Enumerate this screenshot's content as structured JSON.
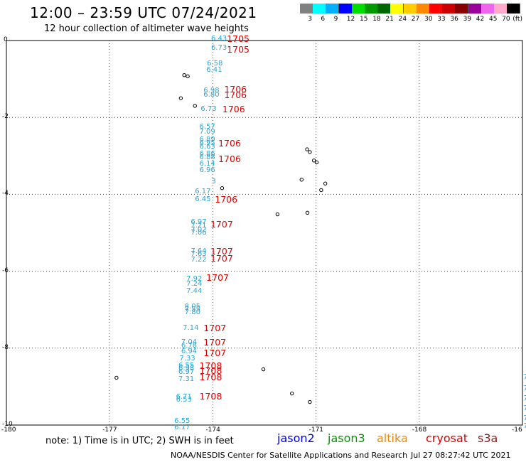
{
  "header": {
    "title": "12:00 – 23:59 UTC 07/24/2021",
    "subtitle": "12 hour collection of altimeter wave heights"
  },
  "colorbar": {
    "colors": [
      "#808080",
      "#00ffff",
      "#00b0ff",
      "#0000ff",
      "#00dd00",
      "#009900",
      "#006600",
      "#ffff00",
      "#ffcc00",
      "#ff8800",
      "#ff0000",
      "#cc0000",
      "#880000",
      "#990099",
      "#ee66ee",
      "#ffaacc",
      "#000000"
    ],
    "labels": [
      "3",
      "6",
      "9",
      "12",
      "15",
      "18",
      "21",
      "24",
      "27",
      "30",
      "33",
      "36",
      "39",
      "42",
      "45",
      "70",
      "(ft)"
    ]
  },
  "axes": {
    "x_ticks": [
      "-180",
      "-177",
      "-174",
      "-171",
      "-168",
      "-16"
    ],
    "y_ticks": [
      "0",
      "-2",
      "-4",
      "-6",
      "-8",
      "-10"
    ],
    "lon_range": [
      -180,
      -165
    ],
    "lat_range": [
      -10,
      0
    ]
  },
  "wave_heights": {
    "color": "#2aa6d6",
    "values": [
      {
        "text": "6.43",
        "lon": -174.03,
        "lat": 0.02
      },
      {
        "text": "6.73",
        "lon": -174.03,
        "lat": -0.23
      },
      {
        "text": "6.58",
        "lon": -174.15,
        "lat": -0.63
      },
      {
        "text": "6.41",
        "lon": -174.17,
        "lat": -0.8
      },
      {
        "text": "6.98",
        "lon": -174.25,
        "lat": -1.33
      },
      {
        "text": "6.80",
        "lon": -174.25,
        "lat": -1.45
      },
      {
        "text": "6.73",
        "lon": -174.33,
        "lat": -1.82
      },
      {
        "text": "6.57",
        "lon": -174.37,
        "lat": -2.28
      },
      {
        "text": "7.09",
        "lon": -174.37,
        "lat": -2.4
      },
      {
        "text": "6.89",
        "lon": -174.37,
        "lat": -2.6
      },
      {
        "text": "6.95",
        "lon": -174.37,
        "lat": -2.7
      },
      {
        "text": "6.63",
        "lon": -174.37,
        "lat": -2.8
      },
      {
        "text": "6.86",
        "lon": -174.37,
        "lat": -2.98
      },
      {
        "text": "6.88",
        "lon": -174.37,
        "lat": -3.06
      },
      {
        "text": "6.14",
        "lon": -174.37,
        "lat": -3.23
      },
      {
        "text": "6.96",
        "lon": -174.37,
        "lat": -3.4
      },
      {
        "text": "3",
        "lon": -174.02,
        "lat": -3.7
      },
      {
        "text": "6.17",
        "lon": -174.5,
        "lat": -3.95
      },
      {
        "text": "6.45",
        "lon": -174.5,
        "lat": -4.15
      },
      {
        "text": "6.97",
        "lon": -174.62,
        "lat": -4.75
      },
      {
        "text": "7.21",
        "lon": -174.62,
        "lat": -4.85
      },
      {
        "text": "7.02",
        "lon": -174.62,
        "lat": -4.95
      },
      {
        "text": "7.06",
        "lon": -174.62,
        "lat": -5.03
      },
      {
        "text": "7.64",
        "lon": -174.62,
        "lat": -5.5
      },
      {
        "text": "7.63",
        "lon": -174.62,
        "lat": -5.58
      },
      {
        "text": "7.22",
        "lon": -174.62,
        "lat": -5.73
      },
      {
        "text": "7.92",
        "lon": -174.75,
        "lat": -6.23
      },
      {
        "text": "7.24",
        "lon": -174.75,
        "lat": -6.35
      },
      {
        "text": "7.44",
        "lon": -174.75,
        "lat": -6.55
      },
      {
        "text": "8.05",
        "lon": -174.8,
        "lat": -6.95
      },
      {
        "text": "7.55",
        "lon": -174.8,
        "lat": -7.03
      },
      {
        "text": "7.80",
        "lon": -174.8,
        "lat": -7.1
      },
      {
        "text": "7.14",
        "lon": -174.85,
        "lat": -7.5
      },
      {
        "text": "7.04",
        "lon": -174.9,
        "lat": -7.88
      },
      {
        "text": "6.78",
        "lon": -174.9,
        "lat": -7.96
      },
      {
        "text": "6.94",
        "lon": -174.9,
        "lat": -8.12
      },
      {
        "text": "7.33",
        "lon": -174.95,
        "lat": -8.3
      },
      {
        "text": "6.55",
        "lon": -174.98,
        "lat": -8.48
      },
      {
        "text": "6.98",
        "lon": -174.98,
        "lat": -8.55
      },
      {
        "text": "6.97",
        "lon": -174.98,
        "lat": -8.65
      },
      {
        "text": "7.31",
        "lon": -174.98,
        "lat": -8.83
      },
      {
        "text": "6.71",
        "lon": -175.05,
        "lat": -9.3
      },
      {
        "text": "6.53",
        "lon": -175.05,
        "lat": -9.38
      },
      {
        "text": "6.55",
        "lon": -175.1,
        "lat": -9.92
      },
      {
        "text": "6.17",
        "lon": -175.1,
        "lat": -10.1
      },
      {
        "text": "7",
        "lon": -164.95,
        "lat": -8.78
      },
      {
        "text": "7",
        "lon": -164.95,
        "lat": -9.08
      },
      {
        "text": "7",
        "lon": -164.95,
        "lat": -9.33
      },
      {
        "text": "7.",
        "lon": -164.95,
        "lat": -9.6
      },
      {
        "text": "7.",
        "lon": -164.95,
        "lat": -9.86
      },
      {
        "text": "7.1",
        "lon": -164.95,
        "lat": -10.05
      }
    ]
  },
  "pass_times": {
    "color": "#e00000",
    "values": [
      {
        "text": "1705",
        "lon": -173.57,
        "lat": 0.02
      },
      {
        "text": "1705",
        "lon": -173.57,
        "lat": -0.25
      },
      {
        "text": "1706",
        "lon": -173.65,
        "lat": -1.3
      },
      {
        "text": "1706",
        "lon": -173.65,
        "lat": -1.45
      },
      {
        "text": "1706",
        "lon": -173.7,
        "lat": -1.82
      },
      {
        "text": "1706",
        "lon": -173.82,
        "lat": -2.7
      },
      {
        "text": "1706",
        "lon": -173.82,
        "lat": -3.1
      },
      {
        "text": "1706",
        "lon": -173.92,
        "lat": -4.15
      },
      {
        "text": "1707",
        "lon": -174.05,
        "lat": -4.8
      },
      {
        "text": "1707",
        "lon": -174.05,
        "lat": -5.5
      },
      {
        "text": "1707",
        "lon": -174.05,
        "lat": -5.7
      },
      {
        "text": "1707",
        "lon": -174.17,
        "lat": -6.2
      },
      {
        "text": "1707",
        "lon": -174.25,
        "lat": -7.5
      },
      {
        "text": "1707",
        "lon": -174.25,
        "lat": -7.88
      },
      {
        "text": "1707",
        "lon": -174.25,
        "lat": -8.15
      },
      {
        "text": "1708",
        "lon": -174.37,
        "lat": -8.48
      },
      {
        "text": "1708",
        "lon": -174.37,
        "lat": -8.62
      },
      {
        "text": "1708",
        "lon": -174.37,
        "lat": -8.78
      },
      {
        "text": "1708",
        "lon": -174.37,
        "lat": -9.28
      }
    ]
  },
  "islands": [
    {
      "lon": -174.83,
      "lat": -0.9
    },
    {
      "lon": -174.73,
      "lat": -0.93
    },
    {
      "lon": -174.93,
      "lat": -1.5
    },
    {
      "lon": -174.52,
      "lat": -1.7
    },
    {
      "lon": -171.26,
      "lat": -2.83
    },
    {
      "lon": -171.18,
      "lat": -2.9
    },
    {
      "lon": -171.06,
      "lat": -3.12
    },
    {
      "lon": -170.98,
      "lat": -3.17
    },
    {
      "lon": -171.42,
      "lat": -3.62
    },
    {
      "lon": -170.73,
      "lat": -3.72
    },
    {
      "lon": -170.85,
      "lat": -3.89
    },
    {
      "lon": -173.73,
      "lat": -3.84
    },
    {
      "lon": -172.12,
      "lat": -4.52
    },
    {
      "lon": -171.25,
      "lat": -4.48
    },
    {
      "lon": -172.53,
      "lat": -8.55
    },
    {
      "lon": -171.7,
      "lat": -9.18
    },
    {
      "lon": -171.18,
      "lat": -9.4
    },
    {
      "lon": -176.8,
      "lat": -8.77
    }
  ],
  "footer": {
    "note": "note:  1) Time is in UTC;  2) SWH is in feet",
    "satellites": [
      {
        "name": "jason2",
        "color": "#0000dd"
      },
      {
        "name": "jason3",
        "color": "#009900"
      },
      {
        "name": "altika",
        "color": "#ee8800"
      },
      {
        "name": "cryosat",
        "color": "#dd0000"
      },
      {
        "name": "s3a",
        "color": "#8b1a1a"
      }
    ],
    "credit": "NOAA/NESDIS Center for Satellite Applications and Research",
    "timestamp": "Jul 27 08:27:42 UTC 2021"
  }
}
